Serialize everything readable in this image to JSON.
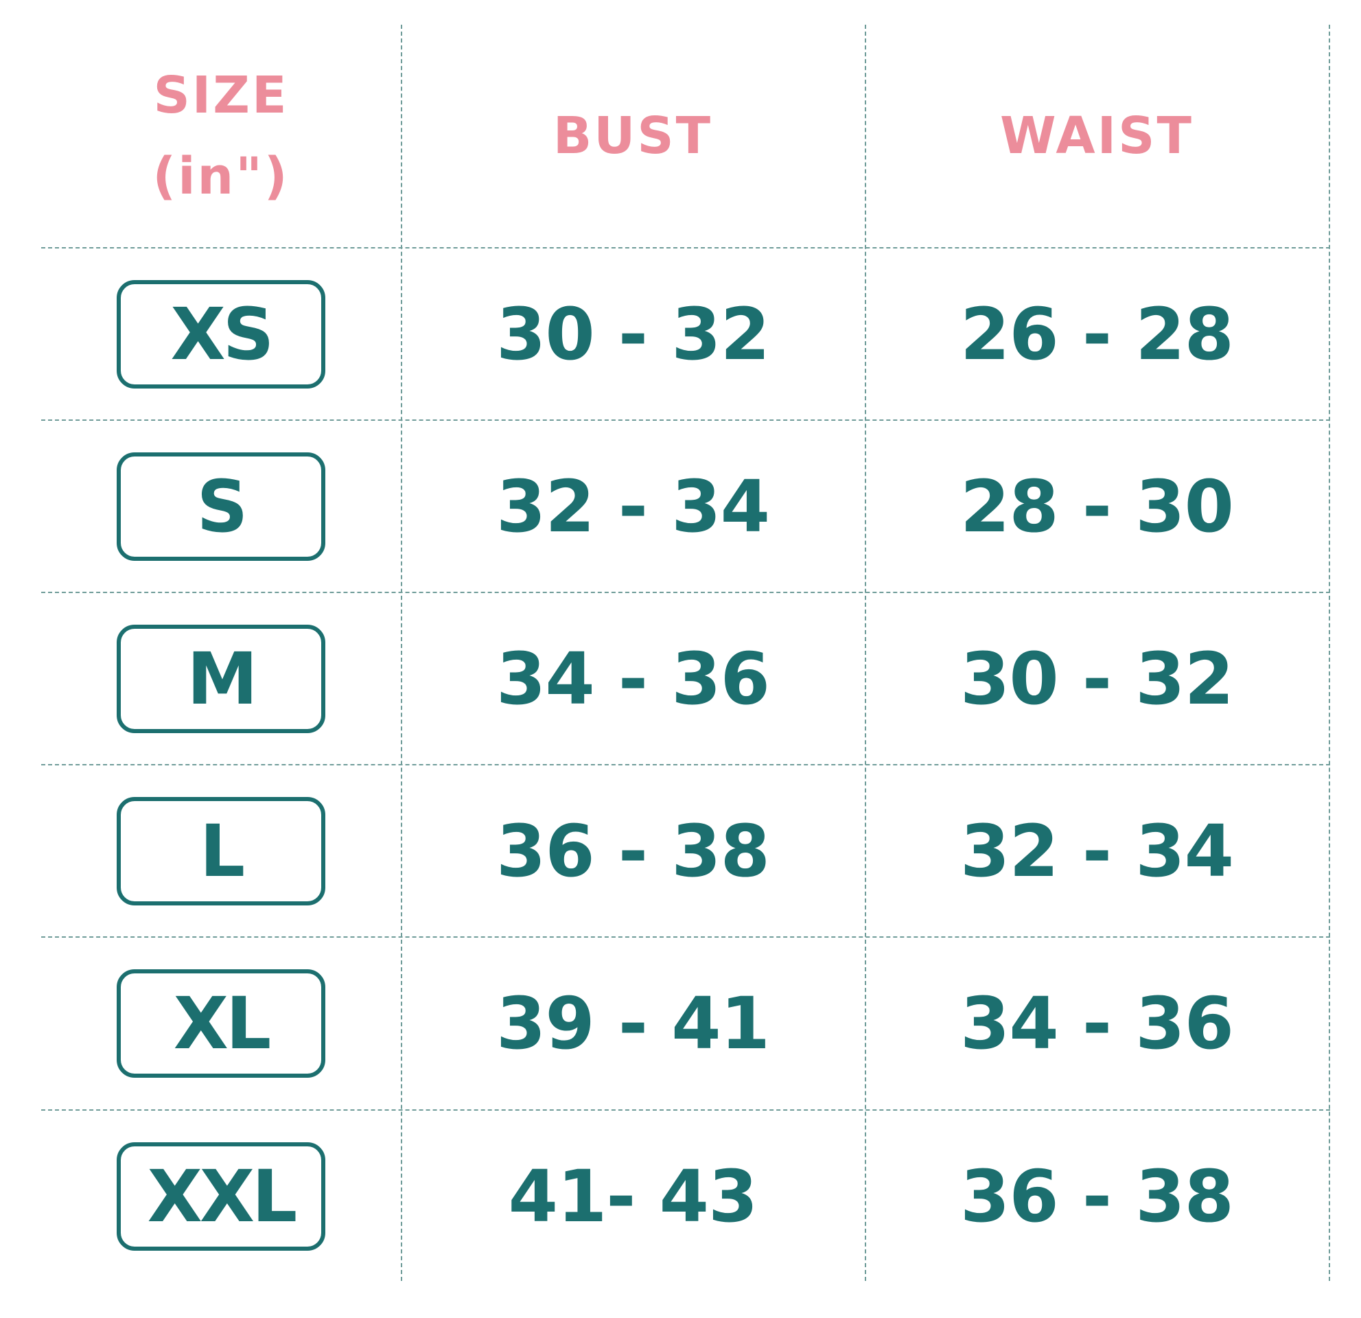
{
  "colors": {
    "header_text": "#ec8d9b",
    "body_text": "#1c6f6f",
    "grid_line": "#6f9c99",
    "background": "#ffffff"
  },
  "header": {
    "size_line1": "SIZE",
    "size_line2": "(in\")",
    "bust": "BUST",
    "waist": "WAIST"
  },
  "rows": [
    {
      "size": "XS",
      "bust": "30 - 32",
      "waist": "26 - 28"
    },
    {
      "size": "S",
      "bust": "32 - 34",
      "waist": "28 - 30"
    },
    {
      "size": "M",
      "bust": "34 - 36",
      "waist": "30 - 32"
    },
    {
      "size": "L",
      "bust": "36 - 38",
      "waist": "32 - 34"
    },
    {
      "size": "XL",
      "bust": "39 - 41",
      "waist": "34 - 36"
    },
    {
      "size": "XXL",
      "bust": "41- 43",
      "waist": "36 - 38"
    }
  ]
}
